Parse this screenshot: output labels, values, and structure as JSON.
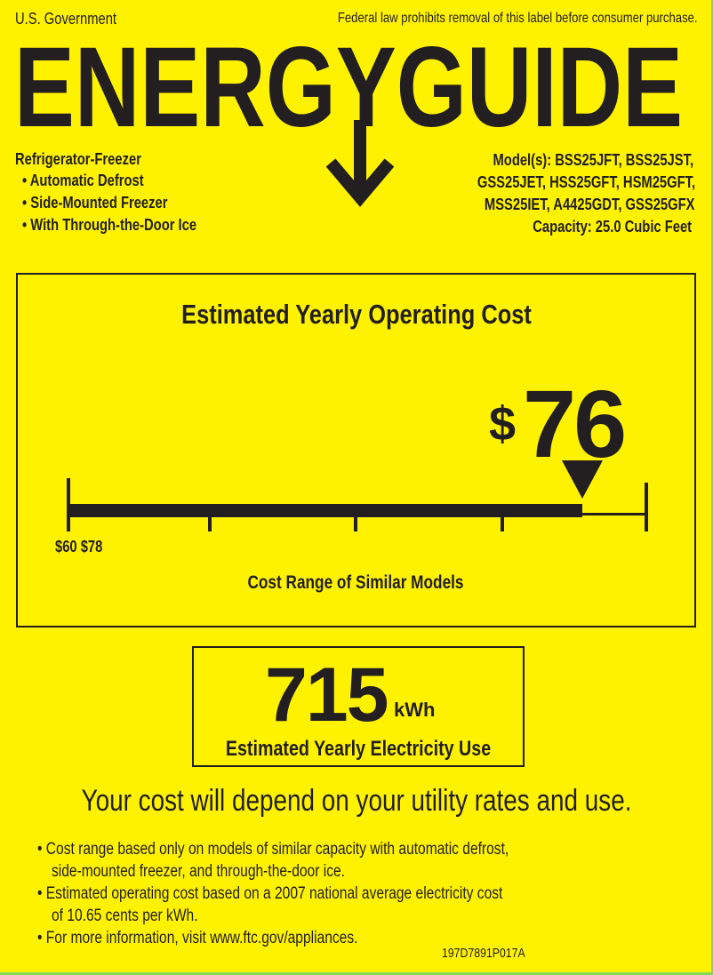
{
  "header": {
    "government": "U.S. Government",
    "notice": "Federal law prohibits removal of this label before consumer purchase.",
    "logo_text": "ENERGYGUIDE"
  },
  "product": {
    "type": "Refrigerator-Freezer",
    "features": [
      "Automatic Defrost",
      "Side-Mounted Freezer",
      "With Through-the-Door Ice"
    ]
  },
  "models": {
    "lines": [
      "Model(s): BSS25JFT, BSS25JST,",
      "GSS25JET, HSS25GFT, HSM25GFT,",
      "MSS25IET, A4425GDT, GSS25GFX"
    ],
    "capacity": "Capacity: 25.0 Cubic Feet"
  },
  "cost": {
    "title": "Estimated Yearly Operating Cost",
    "currency": "$",
    "value": "76",
    "range_label": "$60 $78",
    "range_min": 60,
    "range_max": 78,
    "range_caption": "Cost Range of Similar Models"
  },
  "electricity": {
    "value": "715",
    "unit": "kWh",
    "caption": "Estimated Yearly Electricity Use"
  },
  "disclaimer": "Your cost will depend on your utility rates and use.",
  "notes": [
    "Cost range based only on models of similar capacity with automatic defrost,",
    "side-mounted freezer, and through-the-door ice.",
    "Estimated operating cost based on a 2007 national average electricity cost",
    "of 10.65 cents per kWh.",
    "For more information, visit www.ftc.gov/appliances."
  ],
  "label_code": "197D7891P017A",
  "colors": {
    "background": "#fff200",
    "ink": "#231f20"
  }
}
